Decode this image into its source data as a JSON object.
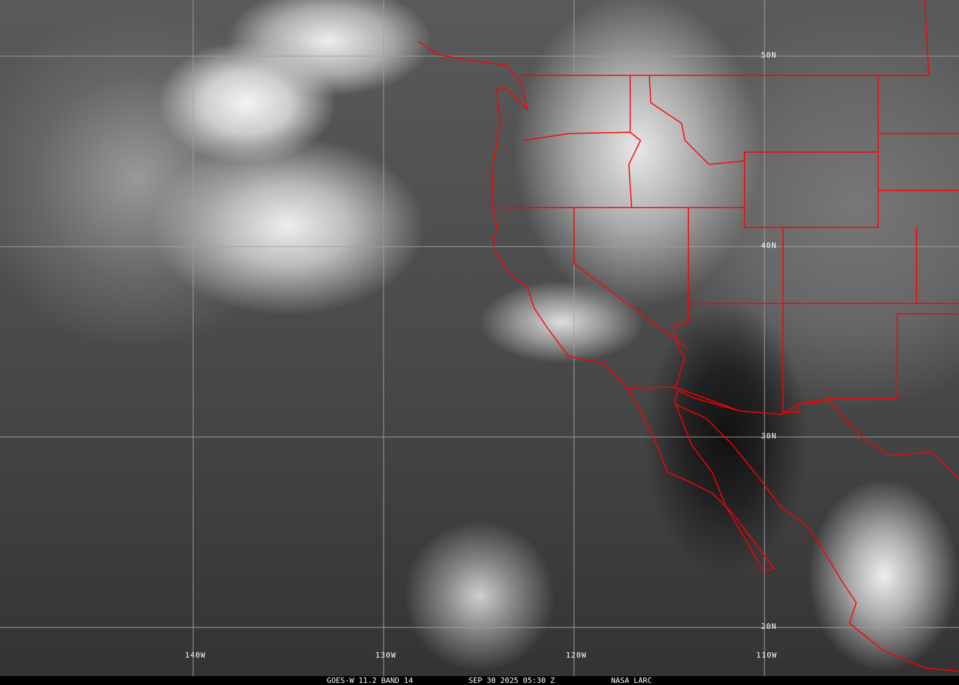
{
  "caption": {
    "product": "GOES-W 11.2 BAND 14",
    "datetime": "SEP 30 2025 05:30 Z",
    "source": "NASA LARC"
  },
  "grid": {
    "longitudes": [
      "140W",
      "130W",
      "120W",
      "110W"
    ],
    "latitudes": [
      "50N",
      "40N",
      "30N",
      "20N"
    ]
  },
  "colors": {
    "borders": "#ff0000",
    "grid": "#a0a0a0",
    "caption_bg": "#000000"
  }
}
